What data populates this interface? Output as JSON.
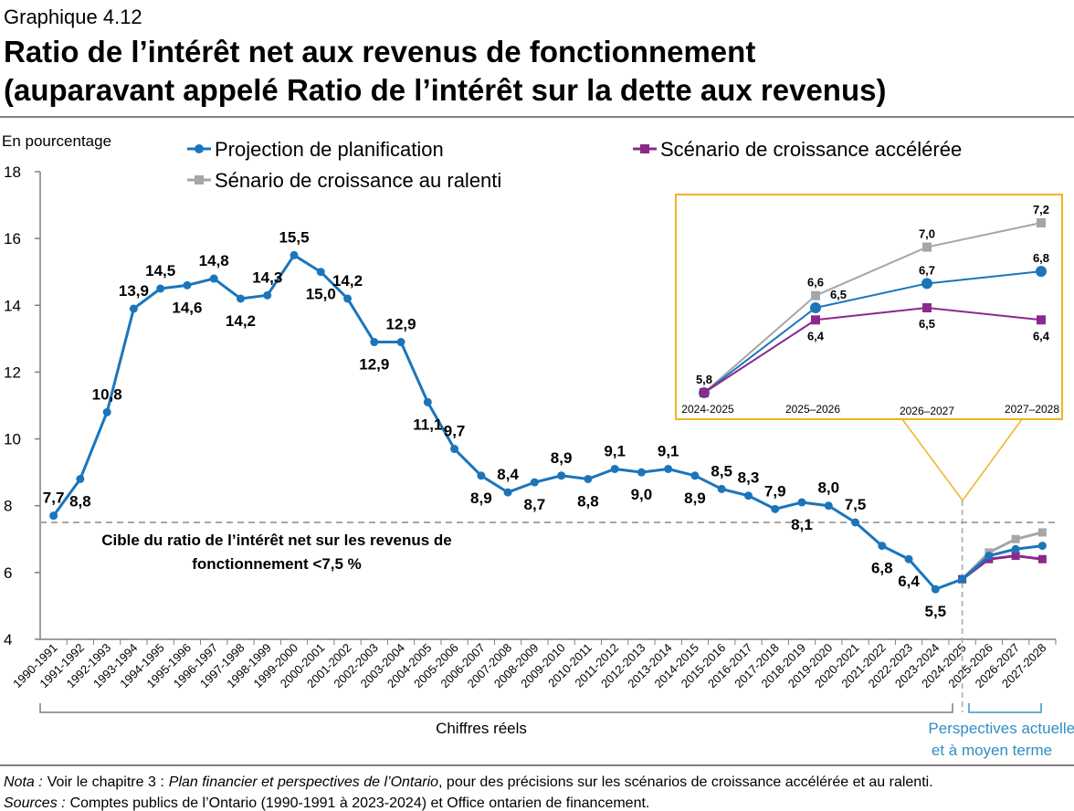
{
  "chart_data": [
    {
      "type": "line",
      "subtitle": "Graphique 4.12",
      "title": [
        "Ratio de l’intérêt net aux revenus de fonctionnement",
        "(auparavant appelé Ratio de l’intérêt sur la dette aux revenus)"
      ],
      "ylabel": "En pourcentage",
      "categories": [
        "1990-1991",
        "1991-1992",
        "1992-1993",
        "1993-1994",
        "1994-1995",
        "1995-1996",
        "1996-1997",
        "1997-1998",
        "1998-1999",
        "1999-2000",
        "2000-2001",
        "2001-2002",
        "2002-2003",
        "2003-2004",
        "2004-2005",
        "2005-2006",
        "2006-2007",
        "2007-2008",
        "2008-2009",
        "2009-2010",
        "2010-2011",
        "2011-2012",
        "2012-2013",
        "2013-2014",
        "2014-2015",
        "2015-2016",
        "2016-2017",
        "2017-2018",
        "2018-2019",
        "2019-2020",
        "2020-2021",
        "2021-2022",
        "2022-2023",
        "2023-2024",
        "2024-2025",
        "2025-2026",
        "2026-2027",
        "2027-2028"
      ],
      "series": [
        {
          "name": "Projection de planification",
          "color": "#1b75bb",
          "marker": "circle",
          "values": [
            7.7,
            8.8,
            10.8,
            13.9,
            14.5,
            14.6,
            14.8,
            14.2,
            14.3,
            15.5,
            15.0,
            14.2,
            12.9,
            12.9,
            11.1,
            9.7,
            8.9,
            8.4,
            8.7,
            8.9,
            8.8,
            9.1,
            9.0,
            9.1,
            8.9,
            8.5,
            8.3,
            7.9,
            8.1,
            8.0,
            7.5,
            6.8,
            6.4,
            5.5,
            5.8,
            6.5,
            6.7,
            6.8
          ],
          "value_labels": [
            "7,7",
            "8,8",
            "10,8",
            "13,9",
            "14,5",
            "14,6",
            "14,8",
            "14,2",
            "14,3",
            "15,5",
            "15,0",
            "14,2",
            "12,9",
            "12,9",
            "11,1",
            "9,7",
            "8,9",
            "8,4",
            "8,7",
            "8,9",
            "8,8",
            "9,1",
            "9,0",
            "9,1",
            "8,9",
            "8,5",
            "8,3",
            "7,9",
            "8,1",
            "8,0",
            "7,5",
            "6,8",
            "6,4",
            "5,5",
            null,
            null,
            null,
            null
          ]
        },
        {
          "name": "Scénario de croissance accélérée",
          "color": "#8b2a8b",
          "marker": "square",
          "values": [
            null,
            null,
            null,
            null,
            null,
            null,
            null,
            null,
            null,
            null,
            null,
            null,
            null,
            null,
            null,
            null,
            null,
            null,
            null,
            null,
            null,
            null,
            null,
            null,
            null,
            null,
            null,
            null,
            null,
            null,
            null,
            null,
            null,
            null,
            5.8,
            6.4,
            6.5,
            6.4
          ]
        },
        {
          "name": "Sénario de croissance au ralenti",
          "color": "#a6a6a6",
          "marker": "square",
          "values": [
            null,
            null,
            null,
            null,
            null,
            null,
            null,
            null,
            null,
            null,
            null,
            null,
            null,
            null,
            null,
            null,
            null,
            null,
            null,
            null,
            null,
            null,
            null,
            null,
            null,
            null,
            null,
            null,
            null,
            null,
            null,
            null,
            null,
            null,
            5.8,
            6.6,
            7.0,
            7.2
          ]
        }
      ],
      "ylim": [
        4,
        18
      ],
      "yticks": [
        4,
        6,
        8,
        10,
        12,
        14,
        16,
        18
      ],
      "target": 7.5,
      "target_label": [
        "Cible du ratio de l’intérêt net sur les revenus de",
        "fonctionnement <7,5 %"
      ],
      "periods": [
        "Chiffres réels",
        "Perspectives actuelles",
        "et à moyen terme"
      ]
    },
    {
      "type": "line",
      "categories": [
        "2024-2025",
        "2025–2026",
        "2026–2027",
        "2027–2028"
      ],
      "series": [
        {
          "name": "Projection de planification",
          "color": "#1b75bb",
          "marker": "circle",
          "values": [
            5.8,
            6.5,
            6.7,
            6.8
          ],
          "value_labels": [
            "5,8",
            "6,5",
            "6,7",
            "6,8"
          ]
        },
        {
          "name": "Scénario de croissance accélérée",
          "color": "#8b2a8b",
          "marker": "square",
          "values": [
            5.8,
            6.4,
            6.5,
            6.4
          ],
          "value_labels": [
            null,
            "6,4",
            "6,5",
            "6,4"
          ]
        },
        {
          "name": "Sénario de croissance au ralenti",
          "color": "#a6a6a6",
          "marker": "square",
          "values": [
            5.8,
            6.6,
            7.0,
            7.2
          ],
          "value_labels": [
            null,
            "6,6",
            "7,0",
            "7,2"
          ]
        }
      ]
    }
  ],
  "footer": {
    "note": [
      "Nota :",
      "Voir le chapitre 3 :",
      "Plan financier et perspectives de l’Ontario",
      ", pour des précisions sur les scénarios de croissance accélérée et au ralenti."
    ],
    "sources": [
      "Sources :",
      "Comptes publics de l’Ontario (1990-1991 à 2023-2024) et Office ontarien de financement."
    ]
  }
}
